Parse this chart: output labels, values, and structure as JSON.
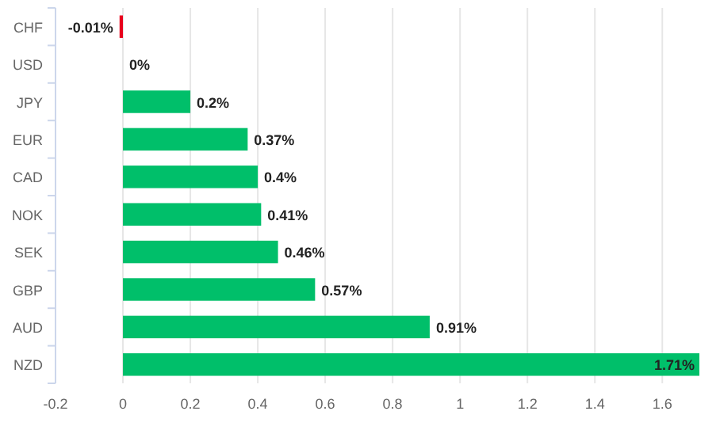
{
  "chart_data": {
    "type": "bar",
    "orientation": "horizontal",
    "categories": [
      "CHF",
      "USD",
      "JPY",
      "EUR",
      "CAD",
      "NOK",
      "SEK",
      "GBP",
      "AUD",
      "NZD"
    ],
    "values": [
      -0.01,
      0,
      0.2,
      0.37,
      0.4,
      0.41,
      0.46,
      0.57,
      0.91,
      1.71
    ],
    "colors": [
      "#e8001c",
      "#00bf6a",
      "#00bf6a",
      "#00bf6a",
      "#00bf6a",
      "#00bf6a",
      "#00bf6a",
      "#00bf6a",
      "#00bf6a",
      "#00bf6a"
    ],
    "value_labels": [
      "-0.01%",
      "0%",
      "0.2%",
      "0.37%",
      "0.4%",
      "0.41%",
      "0.46%",
      "0.57%",
      "0.91%",
      "1.71%"
    ],
    "xlim": [
      -0.2,
      1.71
    ],
    "xticks": [
      -0.2,
      0,
      0.2,
      0.4,
      0.6,
      0.8,
      1,
      1.2,
      1.4,
      1.6
    ],
    "grid": "x"
  }
}
